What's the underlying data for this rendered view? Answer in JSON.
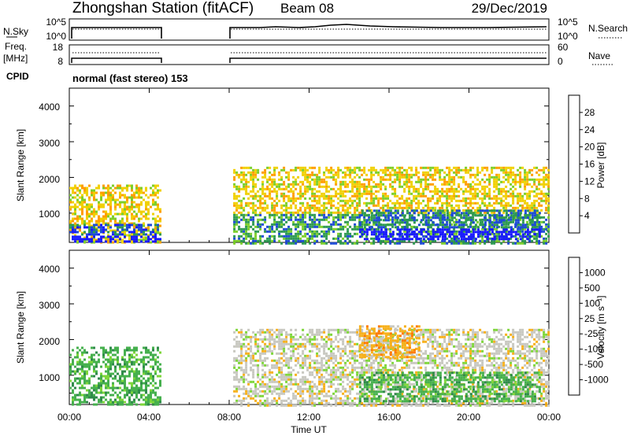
{
  "header": {
    "station": "Zhongshan Station (fitACF)",
    "beam": "Beam 08",
    "date": "29/Dec/2019"
  },
  "strips": {
    "nsky": {
      "label": "N.Sky",
      "left_ticks": [
        "10^5",
        "10^0"
      ],
      "right_label": "N.Search",
      "right_ticks": [
        "10^5",
        "10^0"
      ]
    },
    "freq": {
      "label_line1": "Freq.",
      "label_line2": "[MHz]",
      "left_ticks": [
        "18",
        "8"
      ],
      "right_label": "Nave",
      "right_ticks": [
        "60",
        "0"
      ]
    },
    "cpid": {
      "label": "CPID",
      "text": "normal (fast stereo) 153"
    }
  },
  "panels": {
    "power": {
      "ylabel": "Slant Range [km]",
      "yticks": [
        "4000",
        "3000",
        "2000",
        "1000"
      ],
      "cbar_label": "Power [dB]",
      "cbar_ticks": [
        "28",
        "24",
        "20",
        "16",
        "12",
        "8",
        "4"
      ],
      "cbar_colors": [
        "#ff2a1a",
        "#ff6a00",
        "#ff9d00",
        "#f0d000",
        "#7ccf2a",
        "#2e9a52",
        "#1e4bd6",
        "#1a1aff"
      ]
    },
    "velocity": {
      "ylabel": "Slant Range [km]",
      "yticks": [
        "4000",
        "3000",
        "2000",
        "1000"
      ],
      "cbar_label": "Velocity [m s⁻¹]",
      "cbar_ticks": [
        "1000",
        "500",
        "100",
        "25",
        "-25",
        "-100",
        "-500",
        "-1000"
      ],
      "cbar_colors": [
        "#1f49c8",
        "#2f8a4a",
        "#46b04e",
        "#7ed63a",
        "#c8c8c0",
        "#f7b01a",
        "#ff7a00",
        "#ff3a00",
        "#ff1010"
      ]
    }
  },
  "xaxis": {
    "label": "Time UT",
    "ticks": [
      "00:00",
      "04:00",
      "08:00",
      "12:00",
      "16:00",
      "20:00",
      "00:00"
    ]
  },
  "chart_data": [
    {
      "type": "line",
      "title": "N.Sky / N.Search",
      "x": [
        0,
        4.6,
        8.1,
        24
      ],
      "x_units": "hours UT",
      "series": [
        {
          "name": "N.Sky",
          "values_range": [
            0,
            100000
          ],
          "log_scale": true
        },
        {
          "name": "N.Search",
          "values_range": [
            0,
            100000
          ],
          "log_scale": true
        }
      ],
      "data_gap_hours": [
        4.6,
        8.1
      ]
    },
    {
      "type": "line",
      "title": "Freq. [MHz] / Nave",
      "series": [
        {
          "name": "Freq. [MHz]",
          "ylim": [
            8,
            18
          ]
        },
        {
          "name": "Nave",
          "ylim": [
            0,
            60
          ]
        }
      ],
      "data_gap_hours": [
        4.6,
        8.1
      ]
    },
    {
      "type": "heatmap",
      "title": "Power [dB]",
      "x_range_hours": [
        0,
        24
      ],
      "y_range_km": [
        180,
        4500
      ],
      "z_range": [
        0,
        30
      ],
      "ylabel": "Slant Range [km]",
      "xlabel": "Time UT",
      "regions": [
        {
          "t": [
            0,
            4.6
          ],
          "r": [
            180,
            1800
          ],
          "level": 10
        },
        {
          "t": [
            0,
            4.6
          ],
          "r": [
            180,
            700
          ],
          "level": 22
        },
        {
          "t": [
            8.2,
            24
          ],
          "r": [
            180,
            2300
          ],
          "level": 10
        },
        {
          "t": [
            14.5,
            23.5
          ],
          "r": [
            250,
            1100
          ],
          "level": 20
        }
      ]
    },
    {
      "type": "heatmap",
      "title": "Velocity [m s⁻¹]",
      "x_range_hours": [
        0,
        24
      ],
      "y_range_km": [
        180,
        4500
      ],
      "z_range": [
        -1000,
        1000
      ],
      "ylabel": "Slant Range [km]",
      "xlabel": "Time UT",
      "regions": [
        {
          "t": [
            0,
            4.6
          ],
          "r": [
            180,
            1800
          ],
          "level": 120
        },
        {
          "t": [
            8.2,
            24
          ],
          "r": [
            180,
            2300
          ],
          "level": 0
        },
        {
          "t": [
            14.5,
            17.5
          ],
          "r": [
            1500,
            2400
          ],
          "level": -100
        },
        {
          "t": [
            14.5,
            23.5
          ],
          "r": [
            250,
            1100
          ],
          "level": 100
        }
      ]
    }
  ]
}
